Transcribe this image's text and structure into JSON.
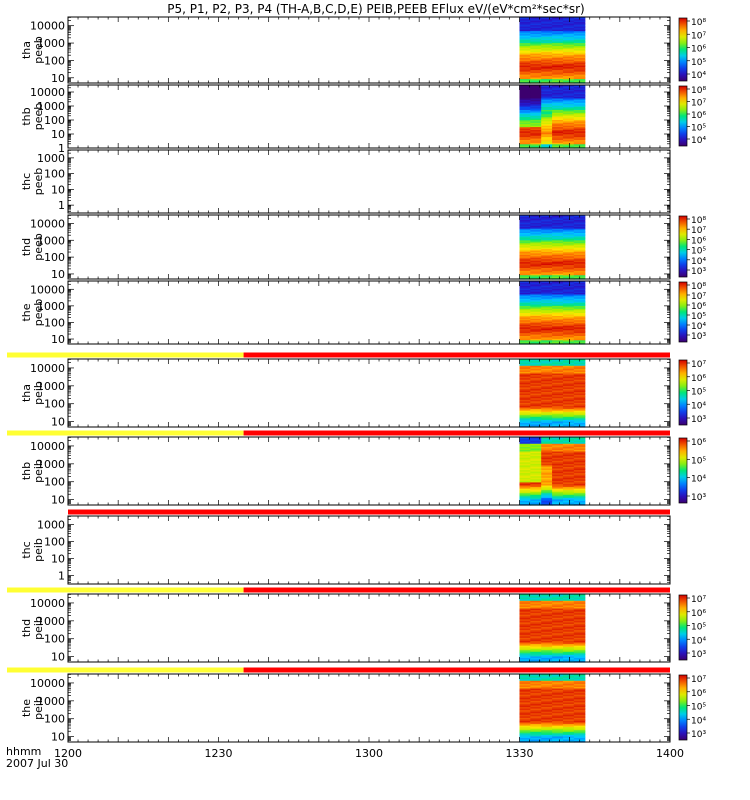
{
  "title": "P5, P1, P2, P3, P4 (TH-A,B,C,D,E) PEIB,PEEB EFlux eV/(eV*cm²*sec*sr)",
  "time_axis": {
    "label1": "hhmm",
    "label2": "2007 Jul 30",
    "ticks": [
      "1200",
      "1230",
      "1300",
      "1330",
      "1400"
    ],
    "minutes": [
      0,
      30,
      60,
      90,
      120
    ]
  },
  "colors": {
    "mode_fast": "#ffff33",
    "mode_slow": "#ff0000"
  },
  "chart_data": [
    {
      "type": "heatmap",
      "name_line1": "tha",
      "name_line2": "peeb",
      "yticks": [
        {
          "v": 10,
          "t": "10"
        },
        {
          "v": 100,
          "t": "100"
        },
        {
          "v": 1000,
          "t": "1000"
        },
        {
          "v": 10000,
          "t": "10000"
        }
      ],
      "ylog": [
        0.7,
        4.5
      ],
      "data_start_min": 90,
      "data_end_min": 103,
      "pattern": "electron",
      "mode_bar": null,
      "colorbar": {
        "labels": [
          "10⁸",
          "10⁷",
          "10⁶",
          "10⁵",
          "10⁴"
        ]
      }
    },
    {
      "type": "heatmap",
      "name_line1": "thb",
      "name_line2": "peeb",
      "yticks": [
        {
          "v": 1,
          "t": "1"
        },
        {
          "v": 10,
          "t": "10"
        },
        {
          "v": 100,
          "t": "100"
        },
        {
          "v": 1000,
          "t": "1000"
        },
        {
          "v": 10000,
          "t": "10000"
        }
      ],
      "ylog": [
        0,
        4.5
      ],
      "data_start_min": 90,
      "data_end_min": 103,
      "pattern": "electron_b",
      "mode_bar": null,
      "colorbar": {
        "labels": [
          "10⁸",
          "10⁷",
          "10⁶",
          "10⁵",
          "10⁴"
        ]
      }
    },
    {
      "type": "heatmap",
      "name_line1": "thc",
      "name_line2": "peeb",
      "yticks": [
        {
          "v": 1,
          "t": "1"
        },
        {
          "v": 10,
          "t": "10"
        },
        {
          "v": 100,
          "t": "100"
        },
        {
          "v": 1000,
          "t": "1000"
        }
      ],
      "ylog": [
        -0.5,
        3.5
      ],
      "data_start_min": null,
      "data_end_min": null,
      "pattern": "none",
      "mode_bar": null,
      "colorbar": null
    },
    {
      "type": "heatmap",
      "name_line1": "thd",
      "name_line2": "peeb",
      "yticks": [
        {
          "v": 10,
          "t": "10"
        },
        {
          "v": 100,
          "t": "100"
        },
        {
          "v": 1000,
          "t": "1000"
        },
        {
          "v": 10000,
          "t": "10000"
        }
      ],
      "ylog": [
        0.7,
        4.5
      ],
      "data_start_min": 90,
      "data_end_min": 103,
      "pattern": "electron",
      "mode_bar": null,
      "colorbar": {
        "labels": [
          "10⁸",
          "10⁷",
          "10⁶",
          "10⁵",
          "10⁴",
          "10³"
        ]
      }
    },
    {
      "type": "heatmap",
      "name_line1": "the",
      "name_line2": "peeb",
      "yticks": [
        {
          "v": 10,
          "t": "10"
        },
        {
          "v": 100,
          "t": "100"
        },
        {
          "v": 1000,
          "t": "1000"
        },
        {
          "v": 10000,
          "t": "10000"
        }
      ],
      "ylog": [
        0.7,
        4.5
      ],
      "data_start_min": 90,
      "data_end_min": 103,
      "pattern": "electron",
      "mode_bar": null,
      "colorbar": {
        "labels": [
          "10⁸",
          "10⁷",
          "10⁶",
          "10⁵",
          "10⁴",
          "10³"
        ]
      }
    },
    {
      "type": "heatmap",
      "name_line1": "tha",
      "name_line2": "peib",
      "yticks": [
        {
          "v": 10,
          "t": "10"
        },
        {
          "v": 100,
          "t": "100"
        },
        {
          "v": 1000,
          "t": "1000"
        },
        {
          "v": 10000,
          "t": "10000"
        }
      ],
      "ylog": [
        0.7,
        4.5
      ],
      "data_start_min": 90,
      "data_end_min": 103,
      "pattern": "ion",
      "mode_bar": {
        "fast_end_min": 35
      },
      "colorbar": {
        "labels": [
          "10⁷",
          "10⁶",
          "10⁵",
          "10⁴",
          "10³"
        ]
      }
    },
    {
      "type": "heatmap",
      "name_line1": "thb",
      "name_line2": "peib",
      "yticks": [
        {
          "v": 10,
          "t": "10"
        },
        {
          "v": 100,
          "t": "100"
        },
        {
          "v": 1000,
          "t": "1000"
        },
        {
          "v": 10000,
          "t": "10000"
        }
      ],
      "ylog": [
        0.7,
        4.5
      ],
      "data_start_min": 90,
      "data_end_min": 103,
      "pattern": "ion_b",
      "mode_bar": {
        "fast_end_min": 35
      },
      "colorbar": {
        "labels": [
          "10⁶",
          "10⁵",
          "10⁴",
          "10³"
        ]
      }
    },
    {
      "type": "heatmap",
      "name_line1": "thc",
      "name_line2": "peib",
      "yticks": [
        {
          "v": 1,
          "t": "1"
        },
        {
          "v": 10,
          "t": "10"
        },
        {
          "v": 100,
          "t": "100"
        },
        {
          "v": 1000,
          "t": "1000"
        }
      ],
      "ylog": [
        -0.5,
        3.5
      ],
      "data_start_min": null,
      "data_end_min": null,
      "pattern": "none",
      "mode_bar": {
        "fast_end_min": 0
      },
      "colorbar": null
    },
    {
      "type": "heatmap",
      "name_line1": "thd",
      "name_line2": "peib",
      "yticks": [
        {
          "v": 10,
          "t": "10"
        },
        {
          "v": 100,
          "t": "100"
        },
        {
          "v": 1000,
          "t": "1000"
        },
        {
          "v": 10000,
          "t": "10000"
        }
      ],
      "ylog": [
        0.7,
        4.5
      ],
      "data_start_min": 90,
      "data_end_min": 103,
      "pattern": "ion",
      "mode_bar": {
        "fast_end_min": 35
      },
      "colorbar": {
        "labels": [
          "10⁷",
          "10⁶",
          "10⁵",
          "10⁴",
          "10³"
        ]
      }
    },
    {
      "type": "heatmap",
      "name_line1": "the",
      "name_line2": "peib",
      "yticks": [
        {
          "v": 10,
          "t": "10"
        },
        {
          "v": 100,
          "t": "100"
        },
        {
          "v": 1000,
          "t": "1000"
        },
        {
          "v": 10000,
          "t": "10000"
        }
      ],
      "ylog": [
        0.7,
        4.5
      ],
      "data_start_min": 90,
      "data_end_min": 103,
      "pattern": "ion",
      "mode_bar": {
        "fast_end_min": 35
      },
      "colorbar": {
        "labels": [
          "10⁷",
          "10⁶",
          "10⁵",
          "10⁴",
          "10³"
        ]
      }
    }
  ]
}
